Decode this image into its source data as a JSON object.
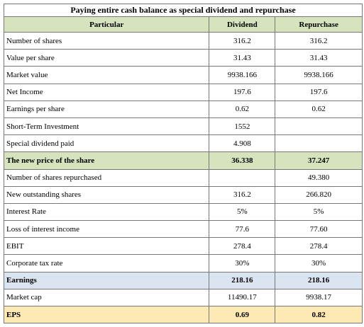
{
  "table": {
    "title": "Paying entire cash balance as special dividend and repurchase",
    "header": [
      "Particular",
      "Dividend",
      "Repurchase"
    ],
    "header_fill": "#d6e3bc",
    "rows": [
      {
        "cells": [
          "Number of shares",
          "316.2",
          "316.2"
        ]
      },
      {
        "cells": [
          "Value per share",
          "31.43",
          "31.43"
        ]
      },
      {
        "cells": [
          "Market value",
          "9938.166",
          "9938.166"
        ]
      },
      {
        "cells": [
          "Net Income",
          "197.6",
          "197.6"
        ]
      },
      {
        "cells": [
          "Earnings per share",
          "0.62",
          "0.62"
        ]
      },
      {
        "cells": [
          "Short-Term Investment",
          "1552",
          null
        ]
      },
      {
        "cells": [
          "Special dividend paid",
          "4.908",
          null
        ]
      },
      {
        "cells": [
          "The new price of the share",
          "36.338",
          "37.247"
        ],
        "bold": true,
        "fill": "#d6e3bc"
      },
      {
        "cells": [
          "Number of shares repurchased",
          null,
          "49.380"
        ]
      },
      {
        "cells": [
          "New outstanding shares",
          "316.2",
          "266.820"
        ]
      },
      {
        "cells": [
          "Interest Rate",
          "5%",
          "5%"
        ]
      },
      {
        "cells": [
          "Loss of interest income",
          "77.6",
          "77.60"
        ]
      },
      {
        "cells": [
          "EBIT",
          "278.4",
          "278.4"
        ]
      },
      {
        "cells": [
          "Corporate tax rate",
          "30%",
          "30%"
        ]
      },
      {
        "cells": [
          "Earnings",
          "218.16",
          "218.16"
        ],
        "bold": true,
        "fill": "#dbe5f1"
      },
      {
        "cells": [
          "Market cap",
          "11490.17",
          "9938.17"
        ]
      },
      {
        "cells": [
          "EPS",
          "0.69",
          "0.82"
        ],
        "bold": true,
        "fill": "#fde9b4"
      }
    ]
  }
}
